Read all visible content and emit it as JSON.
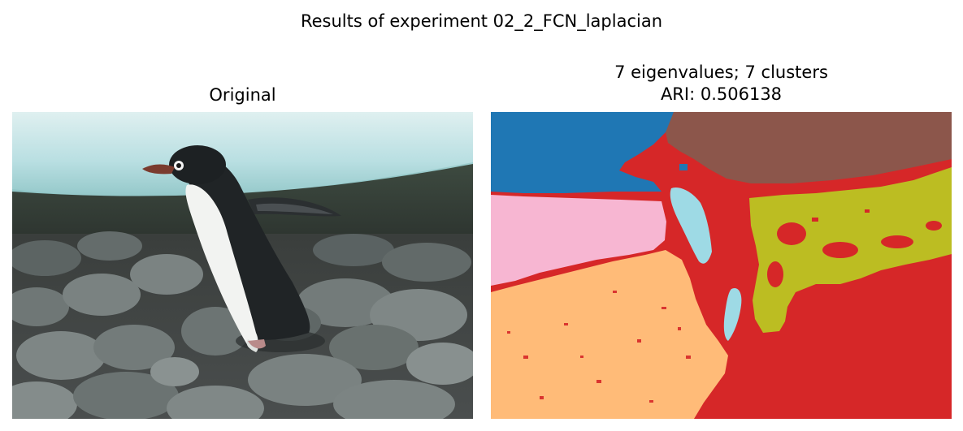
{
  "figure": {
    "suptitle": "Results of experiment 02_2_FCN_laplacian"
  },
  "panels": {
    "original": {
      "title": "Original",
      "image": "photo of an Adelie penguin walking on grey rocks under an ice shelf"
    },
    "segmentation": {
      "title_line1": "7 eigenvalues; 7 clusters",
      "title_line2": "ARI: 0.506138",
      "num_eigenvalues": 7,
      "num_clusters": 7,
      "ari": 0.506138,
      "cluster_colors": [
        "#1f77b4",
        "#8c564b",
        "#d62728",
        "#9edae5",
        "#f7b6d2",
        "#ffbb78",
        "#bcbd22"
      ]
    }
  }
}
